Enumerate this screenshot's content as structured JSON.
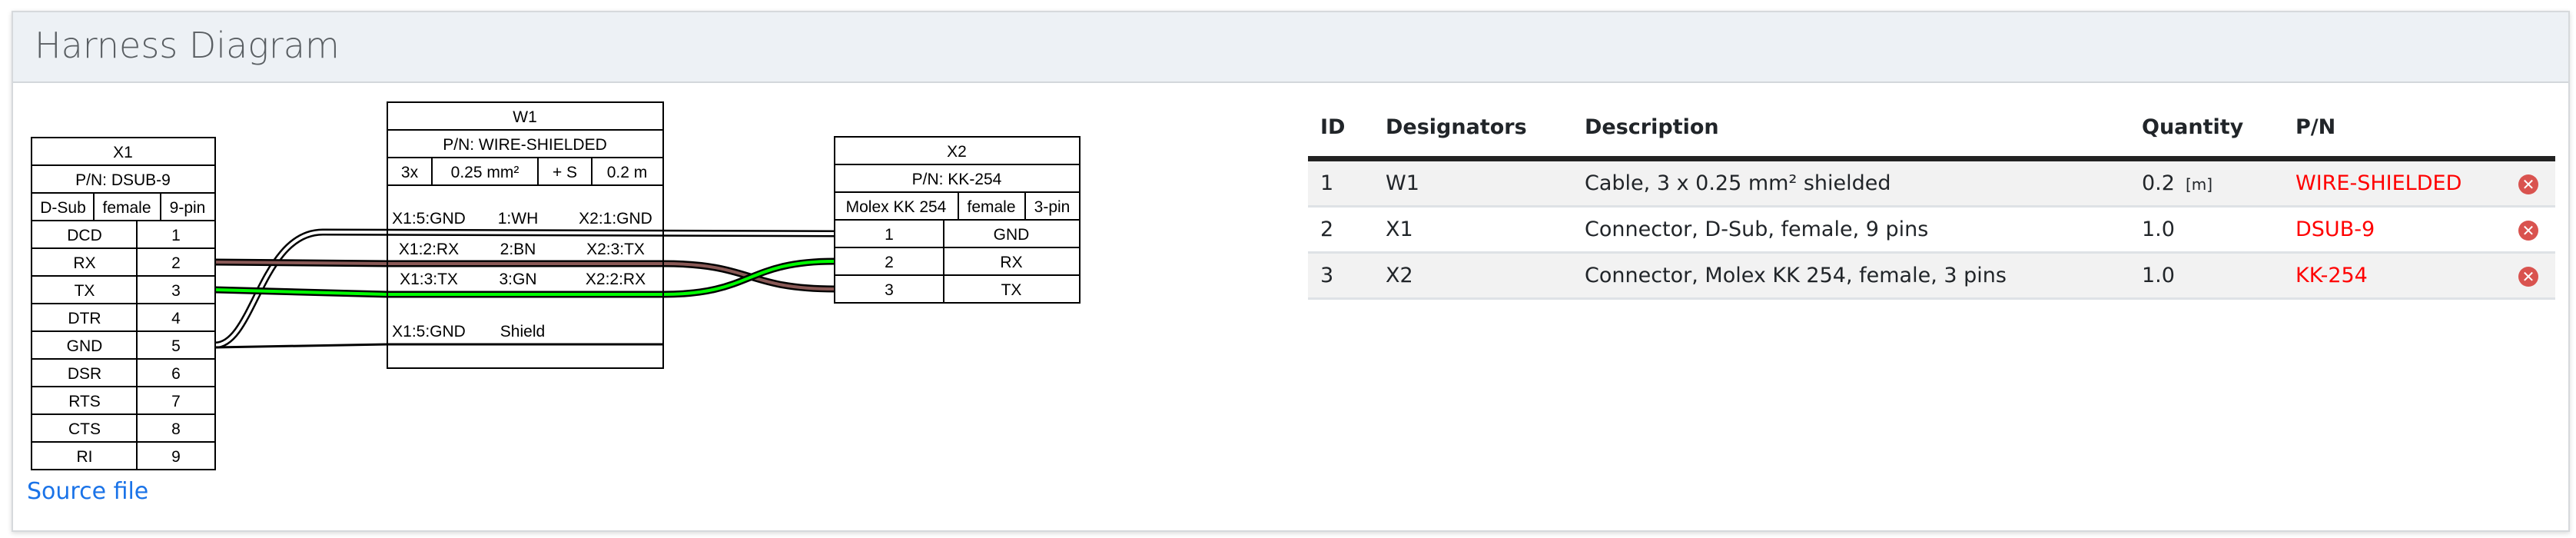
{
  "header": {
    "title": "Harness Diagram"
  },
  "diagram": {
    "x1": {
      "name": "X1",
      "pn": "P/N: DSUB-9",
      "type": "D-Sub",
      "gender": "female",
      "pincount": "9-pin",
      "pins": [
        {
          "label": "DCD",
          "num": "1"
        },
        {
          "label": "RX",
          "num": "2"
        },
        {
          "label": "TX",
          "num": "3"
        },
        {
          "label": "DTR",
          "num": "4"
        },
        {
          "label": "GND",
          "num": "5"
        },
        {
          "label": "DSR",
          "num": "6"
        },
        {
          "label": "RTS",
          "num": "7"
        },
        {
          "label": "CTS",
          "num": "8"
        },
        {
          "label": "RI",
          "num": "9"
        }
      ]
    },
    "w1": {
      "name": "W1",
      "pn": "P/N: WIRE-SHIELDED",
      "count": "3x",
      "gauge": "0.25 mm²",
      "shield": "+ S",
      "length": "0.2 m",
      "wires": [
        {
          "from": "X1:5:GND",
          "wire": "1:WH",
          "to": "X2:1:GND",
          "color": "#ffffff"
        },
        {
          "from": "X1:2:RX",
          "wire": "2:BN",
          "to": "X2:3:TX",
          "color": "#895956"
        },
        {
          "from": "X1:3:TX",
          "wire": "3:GN",
          "to": "X2:2:RX",
          "color": "#00ff00"
        }
      ],
      "shield_row": {
        "from": "X1:5:GND",
        "wire": "Shield"
      }
    },
    "x2": {
      "name": "X2",
      "pn": "P/N: KK-254",
      "type": "Molex KK 254",
      "gender": "female",
      "pincount": "3-pin",
      "pins": [
        {
          "num": "1",
          "label": "GND"
        },
        {
          "num": "2",
          "label": "RX"
        },
        {
          "num": "3",
          "label": "TX"
        }
      ]
    }
  },
  "source_link": "Source file",
  "bom": {
    "columns": [
      "ID",
      "Designators",
      "Description",
      "Quantity",
      "P/N"
    ],
    "rows": [
      {
        "id": "1",
        "designators": "W1",
        "description": "Cable, 3 x 0.25 mm² shielded",
        "quantity": "0.2",
        "unit": "[m]",
        "pn": "WIRE-SHIELDED"
      },
      {
        "id": "2",
        "designators": "X1",
        "description": "Connector, D-Sub, female, 9 pins",
        "quantity": "1.0",
        "unit": "",
        "pn": "DSUB-9"
      },
      {
        "id": "3",
        "designators": "X2",
        "description": "Connector, Molex KK 254, female, 3 pins",
        "quantity": "1.0",
        "unit": "",
        "pn": "KK-254"
      }
    ],
    "delete_icon": "remove-circle-icon"
  }
}
